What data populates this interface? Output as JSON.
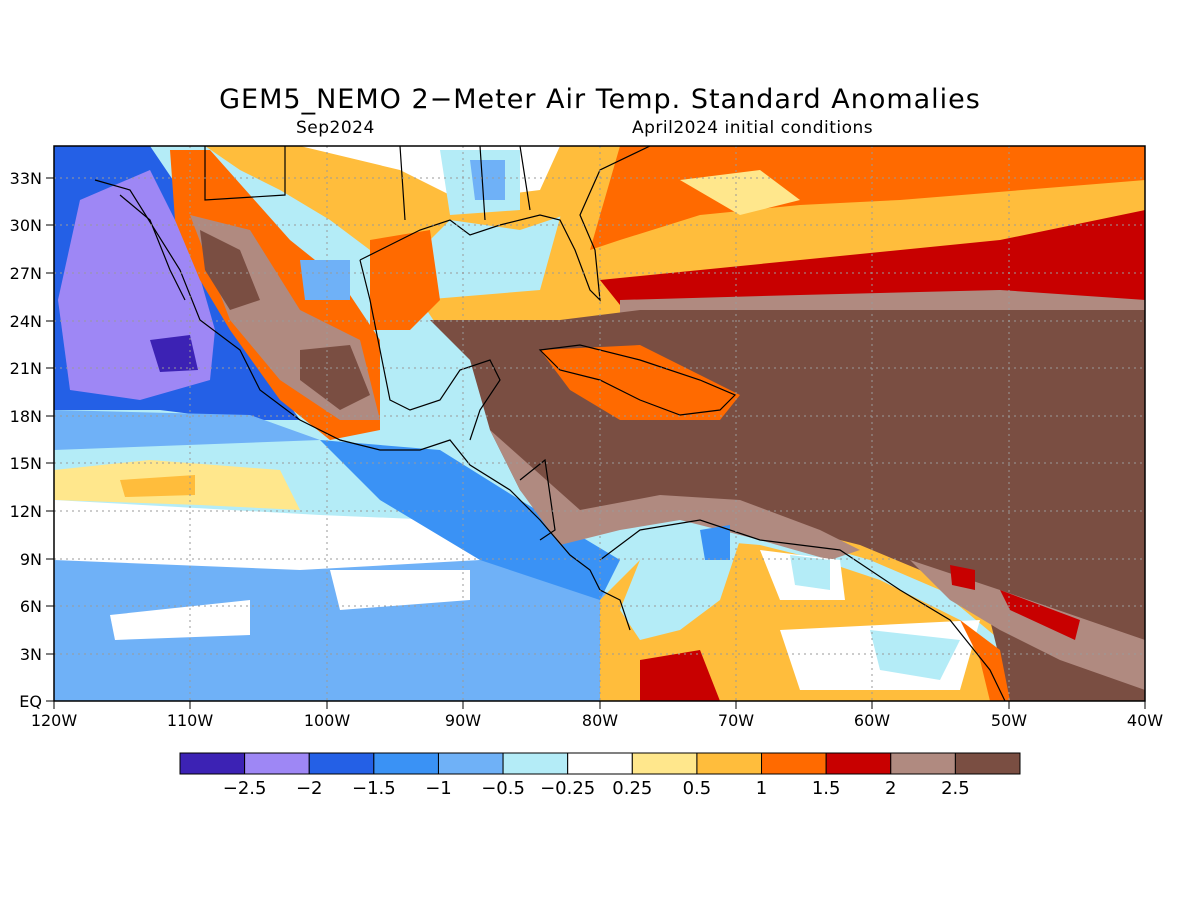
{
  "header": {
    "title": "GEM5_NEMO 2−Meter Air Temp. Standard Anomalies",
    "valid": "Sep2024",
    "init": "April2024 initial conditions"
  },
  "axes": {
    "lon_ticks": [
      "120W",
      "110W",
      "100W",
      "90W",
      "80W",
      "70W",
      "60W",
      "50W",
      "40W"
    ],
    "lat_ticks": [
      "EQ",
      "3N",
      "6N",
      "9N",
      "12N",
      "15N",
      "18N",
      "21N",
      "24N",
      "27N",
      "30N",
      "33N"
    ],
    "lon_range": [
      -120,
      -40
    ],
    "lat_range": [
      0,
      35
    ],
    "grid": true
  },
  "colorbar": {
    "colors": [
      "#3c22b4",
      "#9e87f5",
      "#2460e6",
      "#3a92f5",
      "#6fb1f7",
      "#b4ecf7",
      "#ffffff",
      "#ffe78c",
      "#ffbd3c",
      "#ff6a00",
      "#c80000",
      "#b08a80",
      "#7a4e42"
    ],
    "labels": [
      "−2.5",
      "−2",
      "−1.5",
      "−1",
      "−0.5",
      "−0.25",
      "0.25",
      "0.5",
      "1",
      "1.5",
      "2",
      "2.5"
    ]
  },
  "map": {
    "region": "Mexico, Central America, Caribbean, northern South America",
    "legend_position": "bottom"
  }
}
